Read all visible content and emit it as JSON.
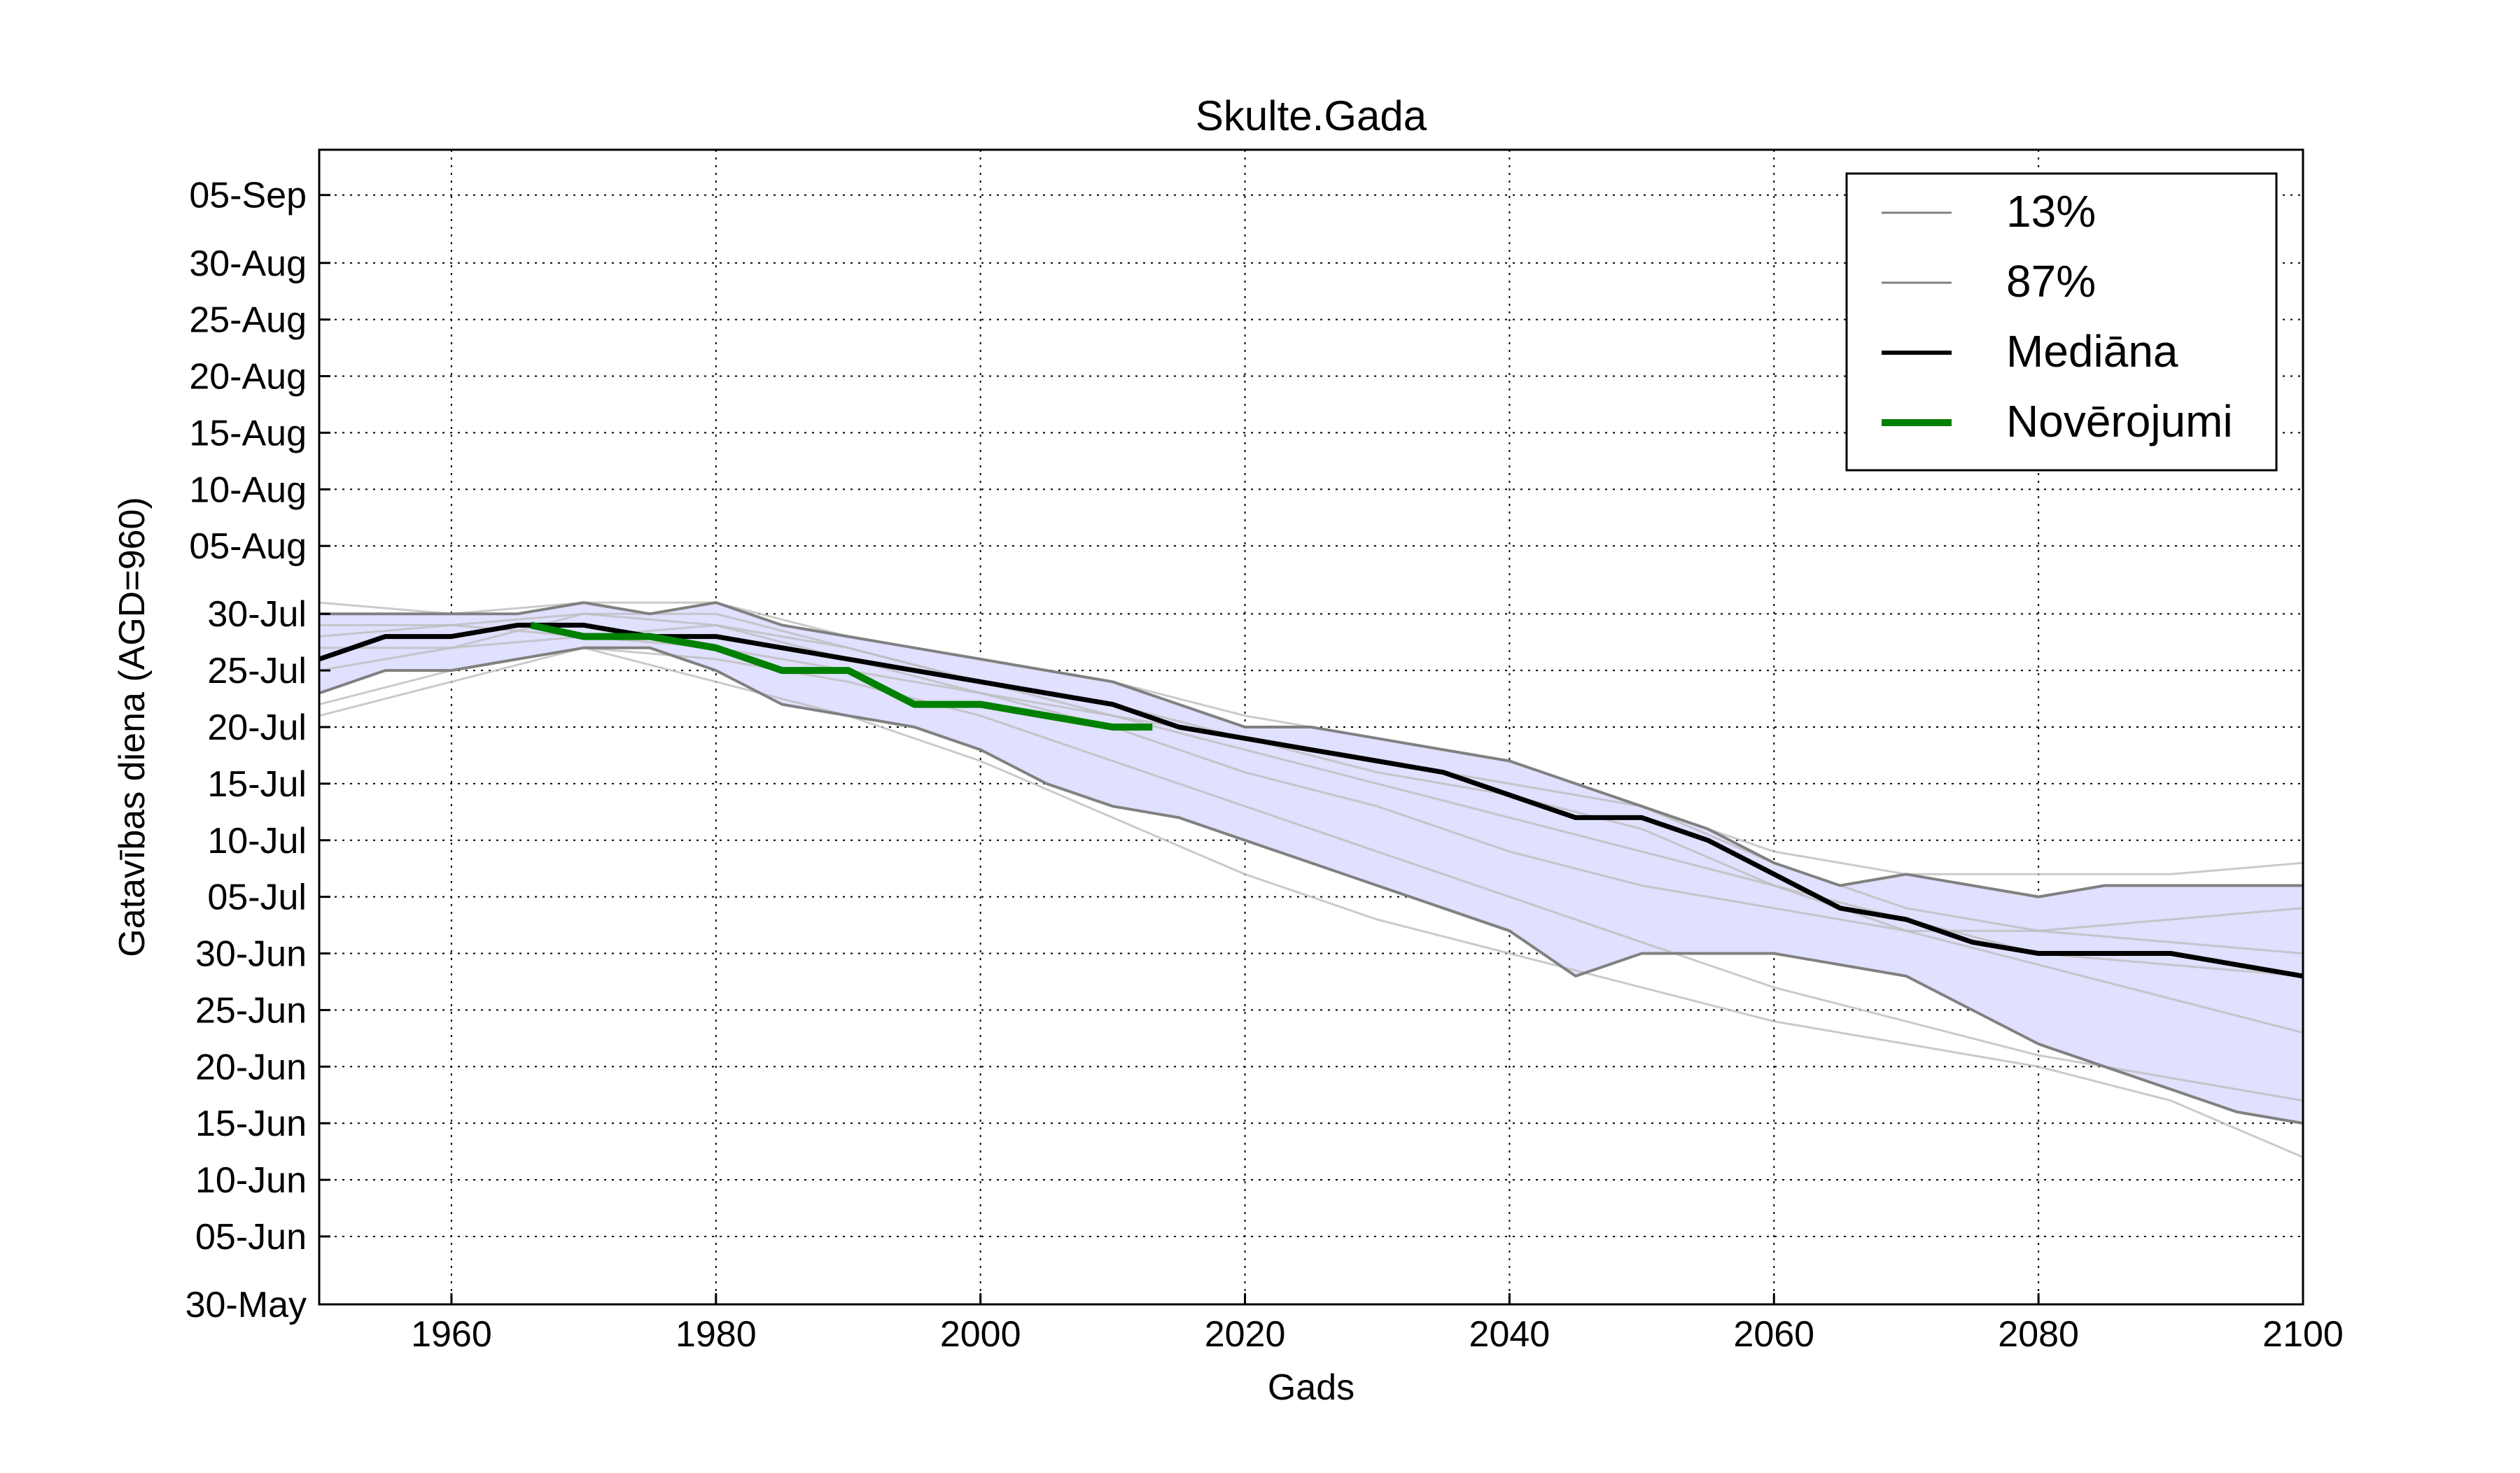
{
  "chart_data": {
    "type": "line",
    "title": "Skulte.Gada",
    "xlabel": "Gads",
    "ylabel": "Gatavības diena (AGD=960)",
    "xlim": [
      1950,
      2100
    ],
    "ylim": [
      "2000-05-30",
      "2000-09-09"
    ],
    "x_ticks": [
      1960,
      1980,
      2000,
      2020,
      2040,
      2060,
      2080,
      2100
    ],
    "y_ticks": [
      "2000-05-30",
      "2000-06-05",
      "2000-06-10",
      "2000-06-15",
      "2000-06-20",
      "2000-06-25",
      "2000-06-30",
      "2000-07-05",
      "2000-07-10",
      "2000-07-15",
      "2000-07-20",
      "2000-07-25",
      "2000-07-30",
      "2000-08-05",
      "2000-08-10",
      "2000-08-15",
      "2000-08-20",
      "2000-08-25",
      "2000-08-30",
      "2000-09-05"
    ],
    "y_tick_labels": [
      "30-May",
      "05-Jun",
      "10-Jun",
      "15-Jun",
      "20-Jun",
      "25-Jun",
      "30-Jun",
      "05-Jul",
      "10-Jul",
      "15-Jul",
      "20-Jul",
      "25-Jul",
      "30-Jul",
      "05-Aug",
      "10-Aug",
      "15-Aug",
      "20-Aug",
      "25-Aug",
      "30-Aug",
      "05-Sep"
    ],
    "grid": true,
    "legend_position": "top-right",
    "legend": [
      {
        "label": "13%",
        "color": "#808080"
      },
      {
        "label": "87%",
        "color": "#808080"
      },
      {
        "label": "Mediāna",
        "color": "#000000"
      },
      {
        "label": "Novērojumi",
        "color": "#008000"
      }
    ],
    "band_fill_color": "#e0e0ff",
    "series": [
      {
        "name": "13%",
        "color": "#808080",
        "x": [
          1950,
          1955,
          1960,
          1965,
          1970,
          1975,
          1980,
          1985,
          1990,
          1995,
          2000,
          2005,
          2010,
          2015,
          2020,
          2025,
          2030,
          2035,
          2040,
          2045,
          2050,
          2055,
          2060,
          2065,
          2070,
          2075,
          2080,
          2085,
          2090,
          2095,
          2100
        ],
        "y": [
          "2000-07-23",
          "2000-07-25",
          "2000-07-25",
          "2000-07-26",
          "2000-07-27",
          "2000-07-27",
          "2000-07-25",
          "2000-07-22",
          "2000-07-21",
          "2000-07-20",
          "2000-07-18",
          "2000-07-15",
          "2000-07-13",
          "2000-07-12",
          "2000-07-10",
          "2000-07-08",
          "2000-07-06",
          "2000-07-04",
          "2000-07-02",
          "2000-06-28",
          "2000-06-30",
          "2000-06-30",
          "2000-06-30",
          "2000-06-29",
          "2000-06-28",
          "2000-06-25",
          "2000-06-22",
          "2000-06-20",
          "2000-06-18",
          "2000-06-16",
          "2000-06-15"
        ]
      },
      {
        "name": "87%",
        "color": "#808080",
        "x": [
          1950,
          1955,
          1960,
          1965,
          1970,
          1975,
          1980,
          1985,
          1990,
          1995,
          2000,
          2005,
          2010,
          2015,
          2020,
          2025,
          2030,
          2035,
          2040,
          2045,
          2050,
          2055,
          2060,
          2065,
          2070,
          2075,
          2080,
          2085,
          2090,
          2095,
          2100
        ],
        "y": [
          "2000-07-30",
          "2000-07-30",
          "2000-07-30",
          "2000-07-30",
          "2000-07-31",
          "2000-07-30",
          "2000-07-31",
          "2000-07-29",
          "2000-07-28",
          "2000-07-27",
          "2000-07-26",
          "2000-07-25",
          "2000-07-24",
          "2000-07-22",
          "2000-07-20",
          "2000-07-20",
          "2000-07-19",
          "2000-07-18",
          "2000-07-17",
          "2000-07-15",
          "2000-07-13",
          "2000-07-11",
          "2000-07-08",
          "2000-07-06",
          "2000-07-07",
          "2000-07-06",
          "2000-07-05",
          "2000-07-06",
          "2000-07-06",
          "2000-07-06",
          "2000-07-06"
        ]
      },
      {
        "name": "Mediāna",
        "color": "#000000",
        "x": [
          1950,
          1955,
          1960,
          1965,
          1970,
          1975,
          1980,
          1985,
          1990,
          1995,
          2000,
          2005,
          2010,
          2015,
          2020,
          2025,
          2030,
          2035,
          2040,
          2045,
          2050,
          2055,
          2060,
          2065,
          2070,
          2075,
          2080,
          2085,
          2090,
          2095,
          2100
        ],
        "y": [
          "2000-07-26",
          "2000-07-28",
          "2000-07-28",
          "2000-07-29",
          "2000-07-29",
          "2000-07-28",
          "2000-07-28",
          "2000-07-27",
          "2000-07-26",
          "2000-07-25",
          "2000-07-24",
          "2000-07-23",
          "2000-07-22",
          "2000-07-20",
          "2000-07-19",
          "2000-07-18",
          "2000-07-17",
          "2000-07-16",
          "2000-07-14",
          "2000-07-12",
          "2000-07-12",
          "2000-07-10",
          "2000-07-07",
          "2000-07-04",
          "2000-07-03",
          "2000-07-01",
          "2000-06-30",
          "2000-06-30",
          "2000-06-30",
          "2000-06-29",
          "2000-06-28"
        ]
      },
      {
        "name": "Novērojumi",
        "color": "#008000",
        "x": [
          1966,
          1970,
          1975,
          1980,
          1985,
          1990,
          1995,
          2000,
          2005,
          2010,
          2013
        ],
        "y": [
          "2000-07-29",
          "2000-07-28",
          "2000-07-28",
          "2000-07-27",
          "2000-07-25",
          "2000-07-25",
          "2000-07-22",
          "2000-07-22",
          "2000-07-21",
          "2000-07-20",
          "2000-07-20"
        ]
      }
    ],
    "scenario_series": [
      {
        "x": [
          1950,
          1960,
          1970,
          1980,
          1990,
          2000,
          2010,
          2020,
          2030,
          2040,
          2050,
          2060,
          2070,
          2080,
          2090,
          2100
        ],
        "y": [
          "2000-07-31",
          "2000-07-30",
          "2000-07-31",
          "2000-07-31",
          "2000-07-28",
          "2000-07-26",
          "2000-07-24",
          "2000-07-21",
          "2000-07-19",
          "2000-07-17",
          "2000-07-13",
          "2000-07-09",
          "2000-07-07",
          "2000-07-07",
          "2000-07-07",
          "2000-07-08"
        ]
      },
      {
        "x": [
          1950,
          1960,
          1970,
          1980,
          1990,
          2000,
          2010,
          2020,
          2030,
          2040,
          2050,
          2060,
          2070,
          2080,
          2090,
          2100
        ],
        "y": [
          "2000-07-21",
          "2000-07-24",
          "2000-07-27",
          "2000-07-24",
          "2000-07-21",
          "2000-07-17",
          "2000-07-12",
          "2000-07-07",
          "2000-07-03",
          "2000-06-30",
          "2000-06-27",
          "2000-06-24",
          "2000-06-22",
          "2000-06-20",
          "2000-06-17",
          "2000-06-12"
        ]
      },
      {
        "x": [
          1950,
          1960,
          1970,
          1980,
          1990,
          2000,
          2010,
          2020,
          2030,
          2040,
          2050,
          2060,
          2070,
          2080,
          2090,
          2100
        ],
        "y": [
          "2000-07-27",
          "2000-07-27",
          "2000-07-30",
          "2000-07-30",
          "2000-07-27",
          "2000-07-24",
          "2000-07-22",
          "2000-07-19",
          "2000-07-16",
          "2000-07-14",
          "2000-07-11",
          "2000-07-06",
          "2000-07-02",
          "2000-06-29",
          "2000-06-26",
          "2000-06-23"
        ]
      },
      {
        "x": [
          1950,
          1960,
          1970,
          1980,
          1990,
          2000,
          2010,
          2020,
          2030,
          2040,
          2050,
          2060,
          2070,
          2080,
          2090,
          2100
        ],
        "y": [
          "2000-07-28",
          "2000-07-29",
          "2000-07-28",
          "2000-07-29",
          "2000-07-26",
          "2000-07-23",
          "2000-07-21",
          "2000-07-19",
          "2000-07-17",
          "2000-07-15",
          "2000-07-13",
          "2000-07-08",
          "2000-07-04",
          "2000-07-02",
          "2000-07-01",
          "2000-06-30"
        ]
      },
      {
        "x": [
          1950,
          1960,
          1970,
          1980,
          1990,
          2000,
          2010,
          2020,
          2030,
          2040,
          2050,
          2060,
          2070,
          2080,
          2090,
          2100
        ],
        "y": [
          "2000-07-25",
          "2000-07-27",
          "2000-07-28",
          "2000-07-27",
          "2000-07-25",
          "2000-07-23",
          "2000-07-20",
          "2000-07-16",
          "2000-07-13",
          "2000-07-09",
          "2000-07-06",
          "2000-07-04",
          "2000-07-02",
          "2000-07-02",
          "2000-07-03",
          "2000-07-04"
        ]
      },
      {
        "x": [
          1950,
          1960,
          1970,
          1980,
          1990,
          2000,
          2010,
          2020,
          2030,
          2040,
          2050,
          2060,
          2070,
          2080,
          2090,
          2100
        ],
        "y": [
          "2000-07-29",
          "2000-07-29",
          "2000-07-30",
          "2000-07-29",
          "2000-07-27",
          "2000-07-24",
          "2000-07-21",
          "2000-07-18",
          "2000-07-15",
          "2000-07-12",
          "2000-07-09",
          "2000-07-06",
          "2000-07-03",
          "2000-06-30",
          "2000-06-29",
          "2000-06-28"
        ]
      },
      {
        "x": [
          1950,
          1960,
          1970,
          1980,
          1990,
          2000,
          2010,
          2020,
          2030,
          2040,
          2050,
          2060,
          2070,
          2080,
          2090,
          2100
        ],
        "y": [
          "2000-07-22",
          "2000-07-25",
          "2000-07-27",
          "2000-07-26",
          "2000-07-24",
          "2000-07-21",
          "2000-07-17",
          "2000-07-13",
          "2000-07-09",
          "2000-07-05",
          "2000-07-01",
          "2000-06-27",
          "2000-06-24",
          "2000-06-21",
          "2000-06-19",
          "2000-06-17"
        ]
      }
    ]
  }
}
